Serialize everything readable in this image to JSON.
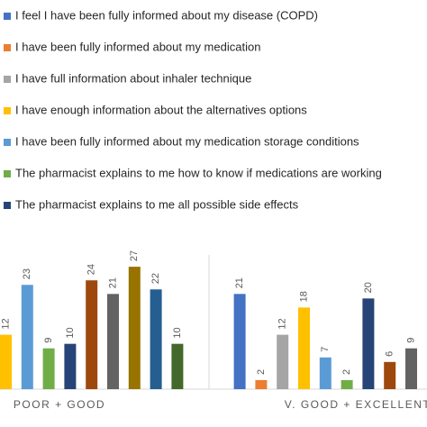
{
  "chart_data": {
    "type": "bar",
    "categories": [
      "POOR + GOOD",
      "V. GOOD + EXCELLENT"
    ],
    "ylim": [
      0,
      30
    ],
    "series": [
      {
        "name": "I feel I have been fully informed about my disease (COPD)",
        "color": "#4472c4",
        "values": [
          null,
          21
        ]
      },
      {
        "name": "I have been fully informed about my medication",
        "color": "#ed7d31",
        "values": [
          null,
          2
        ]
      },
      {
        "name": "I have full information about inhaler technique",
        "color": "#a5a5a5",
        "values": [
          null,
          12
        ]
      },
      {
        "name": "I have enough information about the alternatives options",
        "color": "#ffc000",
        "values": [
          12,
          18
        ]
      },
      {
        "name": "I have been fully informed about my medication storage conditions",
        "color": "#5b9bd5",
        "values": [
          23,
          7
        ]
      },
      {
        "name": "The pharmacist explains to me how to know if medications are working",
        "color": "#70ad47",
        "values": [
          9,
          2
        ]
      },
      {
        "name": "The pharmacist explains to me all possible side effects",
        "color": "#264478",
        "values": [
          10,
          20
        ]
      },
      {
        "color": "#9e480e",
        "values": [
          24,
          6
        ]
      },
      {
        "color": "#636363",
        "values": [
          21,
          9
        ]
      },
      {
        "color": "#997300",
        "values": [
          27,
          null
        ]
      },
      {
        "color": "#255e91",
        "values": [
          22,
          null
        ]
      },
      {
        "color": "#43682b",
        "values": [
          10,
          null
        ]
      }
    ]
  }
}
